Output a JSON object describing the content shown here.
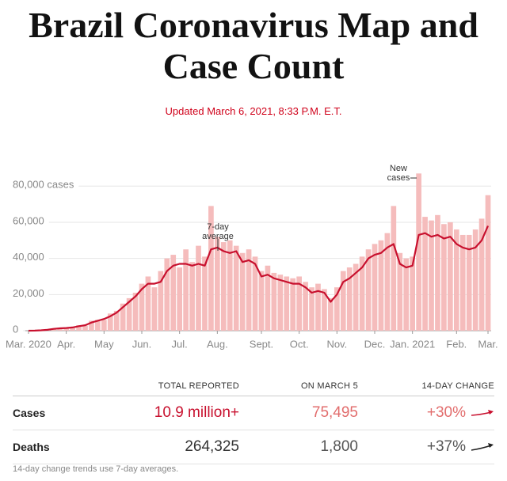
{
  "header": {
    "title": "Brazil Coronavirus Map and Case Count",
    "updated": "Updated March 6, 2021, 8:33 P.M. E.T."
  },
  "chart_data": {
    "type": "bar",
    "categories": [
      "Mar. 2020",
      null,
      null,
      null,
      null,
      null,
      "Apr.",
      null,
      null,
      null,
      null,
      null,
      "May",
      null,
      null,
      null,
      null,
      null,
      "Jun.",
      null,
      null,
      null,
      null,
      null,
      "Jul.",
      null,
      null,
      null,
      null,
      null,
      "Aug.",
      null,
      null,
      null,
      null,
      null,
      null,
      "Sept.",
      null,
      null,
      null,
      null,
      null,
      "Oct.",
      null,
      null,
      null,
      null,
      null,
      "Nov.",
      null,
      null,
      null,
      null,
      null,
      "Dec.",
      null,
      null,
      null,
      null,
      null,
      "Jan. 2021",
      null,
      null,
      null,
      null,
      null,
      null,
      "Feb.",
      null,
      null,
      null,
      null,
      "Mar."
    ],
    "series": [
      {
        "name": "New cases",
        "type": "bar",
        "color": "#f5bcbc",
        "values": [
          0,
          100,
          300,
          700,
          1200,
          1500,
          1400,
          2200,
          3000,
          2800,
          5500,
          6000,
          6000,
          9500,
          11000,
          15000,
          18000,
          21000,
          26000,
          30000,
          24000,
          33000,
          40000,
          42000,
          35000,
          45000,
          38000,
          47000,
          41000,
          69000,
          52000,
          49000,
          50000,
          47000,
          43000,
          45000,
          41000,
          33000,
          36000,
          32000,
          31000,
          30000,
          29000,
          30000,
          27000,
          24000,
          26000,
          23000,
          18000,
          24000,
          33000,
          35000,
          37000,
          41000,
          45000,
          48000,
          50000,
          54000,
          69000,
          43000,
          40000,
          41000,
          87000,
          63000,
          61000,
          64000,
          59000,
          60000,
          56000,
          53000,
          53000,
          56000,
          62000,
          75000
        ]
      },
      {
        "name": "7-day average",
        "type": "line",
        "color": "#c8102e",
        "values": [
          0,
          50,
          200,
          500,
          1000,
          1300,
          1500,
          1800,
          2500,
          3000,
          4500,
          5500,
          6500,
          8000,
          10000,
          13000,
          16000,
          19000,
          23000,
          26000,
          26000,
          27000,
          33000,
          36000,
          37000,
          37000,
          36000,
          37000,
          36000,
          45000,
          46000,
          44000,
          43000,
          44000,
          38000,
          39000,
          37000,
          30000,
          31000,
          29000,
          28000,
          27000,
          26000,
          26000,
          24000,
          21000,
          22000,
          21000,
          16000,
          20000,
          27000,
          29000,
          32000,
          35000,
          40000,
          42000,
          43000,
          46000,
          48000,
          37000,
          35000,
          36000,
          53000,
          54000,
          52000,
          53000,
          51000,
          52000,
          48000,
          46000,
          45000,
          46000,
          50000,
          58000
        ]
      }
    ],
    "annotations": [
      {
        "lines": [
          "7-day",
          "average"
        ]
      },
      {
        "lines": [
          "New",
          "cases"
        ]
      }
    ],
    "ylim": [
      0,
      88000
    ],
    "yticks": [
      0,
      {
        "value": 20000,
        "label": "20,000"
      },
      {
        "value": 40000,
        "label": "40,000"
      },
      {
        "value": 60000,
        "label": "60,000"
      },
      {
        "value": 80000,
        "label": "80,000 cases"
      }
    ],
    "grid": true
  },
  "table": {
    "columns": [
      "TOTAL REPORTED",
      "ON MARCH 5",
      "14-DAY CHANGE"
    ],
    "rows": [
      [
        "Cases",
        "10.9 million+",
        "75,495",
        "+30%"
      ],
      [
        "Deaths",
        "264,325",
        "1,800",
        "+37%"
      ]
    ],
    "note": "14-day change trends use 7-day averages."
  }
}
